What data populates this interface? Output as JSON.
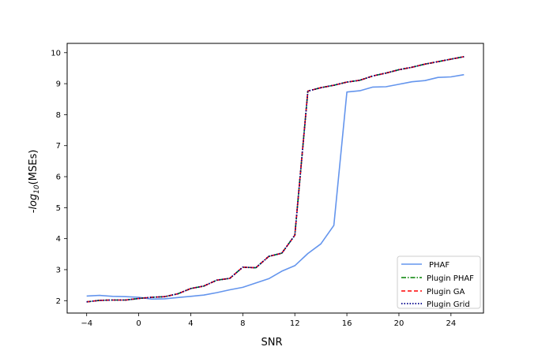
{
  "chart_data": {
    "type": "line",
    "xlabel": "SNR",
    "ylabel_prefix": "-",
    "ylabel_log": "log",
    "ylabel_sub": "10",
    "ylabel_suffix": "(MSEs)",
    "xlim": [
      -5.5,
      26.5
    ],
    "ylim": [
      1.6,
      10.3
    ],
    "xticks": [
      -4,
      0,
      4,
      8,
      12,
      16,
      20,
      24
    ],
    "xtick_labels": [
      "−4",
      "0",
      "4",
      "8",
      "12",
      "16",
      "20",
      "24"
    ],
    "yticks": [
      2,
      3,
      4,
      5,
      6,
      7,
      8,
      9,
      10
    ],
    "ytick_labels": [
      "2",
      "3",
      "4",
      "5",
      "6",
      "7",
      "8",
      "9",
      "10"
    ],
    "legend_position": "lower right",
    "x": [
      -4,
      -3,
      -2,
      -1,
      0,
      1,
      2,
      3,
      4,
      5,
      6,
      7,
      8,
      9,
      10,
      11,
      12,
      13,
      14,
      15,
      16,
      17,
      18,
      19,
      20,
      21,
      22,
      23,
      24,
      25
    ],
    "series": [
      {
        "name": "PHAF",
        "color": "#6495ED",
        "style": "solid",
        "values": [
          2.15,
          2.17,
          2.14,
          2.13,
          2.11,
          2.05,
          2.06,
          2.1,
          2.14,
          2.18,
          2.26,
          2.35,
          2.43,
          2.57,
          2.71,
          2.95,
          3.13,
          3.52,
          3.83,
          4.43,
          8.73,
          8.77,
          8.89,
          8.9,
          8.98,
          9.06,
          9.1,
          9.2,
          9.22,
          9.29
        ]
      },
      {
        "name": "Plugin PHAF",
        "color": "#008000",
        "style": "dashdot",
        "values": [
          1.96,
          2.01,
          2.02,
          2.02,
          2.07,
          2.11,
          2.13,
          2.22,
          2.39,
          2.47,
          2.66,
          2.72,
          3.08,
          3.06,
          3.43,
          3.53,
          4.11,
          8.76,
          8.87,
          8.95,
          9.05,
          9.11,
          9.25,
          9.34,
          9.45,
          9.53,
          9.63,
          9.71,
          9.79,
          9.87
        ]
      },
      {
        "name": "Plugin GA",
        "color": "#FF0000",
        "style": "dashed",
        "values": [
          1.96,
          2.01,
          2.02,
          2.02,
          2.07,
          2.11,
          2.13,
          2.22,
          2.39,
          2.47,
          2.66,
          2.72,
          3.08,
          3.06,
          3.43,
          3.53,
          4.11,
          8.76,
          8.87,
          8.95,
          9.05,
          9.11,
          9.25,
          9.34,
          9.45,
          9.53,
          9.63,
          9.71,
          9.79,
          9.87
        ]
      },
      {
        "name": "Plugin Grid",
        "color": "#00008B",
        "style": "dotted",
        "values": [
          1.96,
          2.01,
          2.02,
          2.02,
          2.07,
          2.11,
          2.13,
          2.22,
          2.39,
          2.47,
          2.66,
          2.72,
          3.08,
          3.06,
          3.43,
          3.53,
          4.11,
          8.76,
          8.87,
          8.95,
          9.05,
          9.11,
          9.25,
          9.34,
          9.45,
          9.53,
          9.63,
          9.71,
          9.79,
          9.87
        ]
      }
    ]
  }
}
